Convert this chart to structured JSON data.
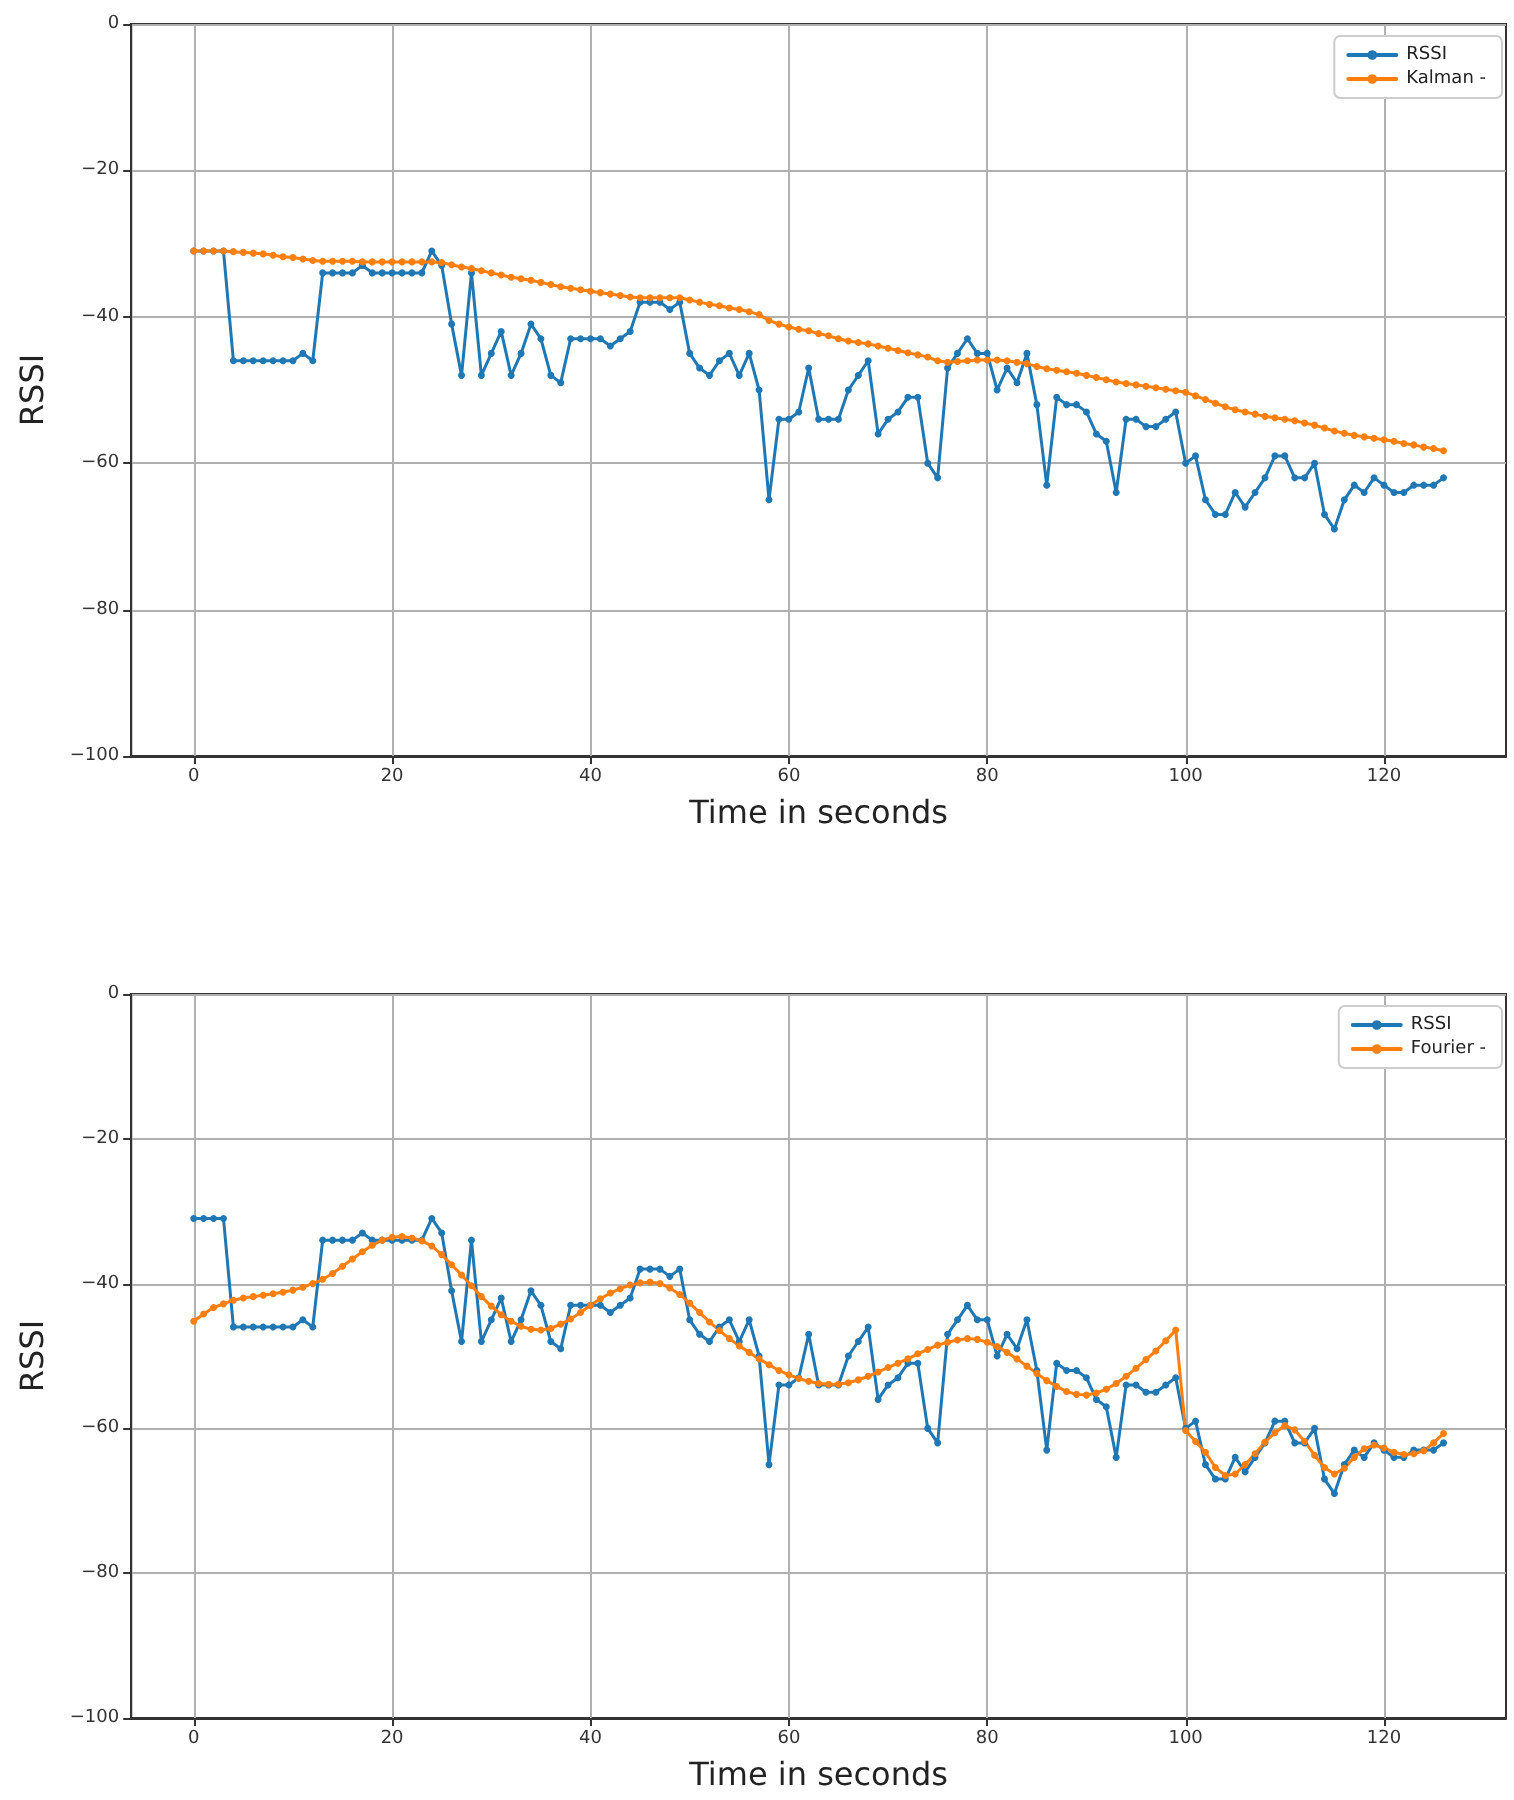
{
  "chart_data": [
    {
      "type": "line",
      "xlabel": "Time in seconds",
      "ylabel": "RSSI",
      "xlim": [
        -6.3,
        132.3
      ],
      "ylim": [
        -100,
        0
      ],
      "xticks": [
        0,
        20,
        40,
        60,
        80,
        100,
        120
      ],
      "yticks": [
        {
          "value": -100,
          "label": "−100"
        },
        {
          "value": -80,
          "label": "−80"
        },
        {
          "value": -60,
          "label": "−60"
        },
        {
          "value": -40,
          "label": "−40"
        },
        {
          "value": -20,
          "label": "−20"
        },
        0
      ],
      "grid": true,
      "legend": "top right",
      "marker": "circle",
      "line_style": "solid",
      "x": [
        0,
        1,
        2,
        3,
        4,
        5,
        6,
        7,
        8,
        9,
        10,
        11,
        12,
        13,
        14,
        15,
        16,
        17,
        18,
        19,
        20,
        21,
        22,
        23,
        24,
        25,
        26,
        27,
        28,
        29,
        30,
        31,
        32,
        33,
        34,
        35,
        36,
        37,
        38,
        39,
        40,
        41,
        42,
        43,
        44,
        45,
        46,
        47,
        48,
        49,
        50,
        51,
        52,
        53,
        54,
        55,
        56,
        57,
        58,
        59,
        60,
        61,
        62,
        63,
        64,
        65,
        66,
        67,
        68,
        69,
        70,
        71,
        72,
        73,
        74,
        75,
        76,
        77,
        78,
        79,
        80,
        81,
        82,
        83,
        84,
        85,
        86,
        87,
        88,
        89,
        90,
        91,
        92,
        93,
        94,
        95,
        96,
        97,
        98,
        99,
        100,
        101,
        102,
        103,
        104,
        105,
        106,
        107,
        108,
        109,
        110,
        111,
        112,
        113,
        114,
        115,
        116,
        117,
        118,
        119,
        120,
        121,
        122,
        123,
        124,
        125,
        126
      ],
      "series": [
        {
          "name": "RSSI",
          "color": "#1f77b4",
          "values": [
            -31,
            -31,
            -31,
            -31,
            -46,
            -46,
            -46,
            -46,
            -46,
            -46,
            -46,
            -45,
            -46,
            -34,
            -34,
            -34,
            -34,
            -33,
            -34,
            -34,
            -34,
            -34,
            -34,
            -34,
            -31,
            -33,
            -41,
            -48,
            -34,
            -48,
            -45,
            -42,
            -48,
            -45,
            -41,
            -43,
            -48,
            -49,
            -43,
            -43,
            -43,
            -43,
            -44,
            -43,
            -42,
            -38,
            -38,
            -38,
            -39,
            -38,
            -45,
            -47,
            -48,
            -46,
            -45,
            -48,
            -45,
            -50,
            -65,
            -54,
            -54,
            -53,
            -47,
            -54,
            -54,
            -54,
            -50,
            -48,
            -46,
            -56,
            -54,
            -53,
            -51,
            -51,
            -60,
            -62,
            -47,
            -45,
            -43,
            -45,
            -45,
            -50,
            -47,
            -49,
            -45,
            -52,
            -63,
            -51,
            -52,
            -52,
            -53,
            -56,
            -57,
            -64,
            -54,
            -54,
            -55,
            -55,
            -54,
            -53,
            -60,
            -59,
            -65,
            -67,
            -67,
            -64,
            -66,
            -64,
            -62,
            -59,
            -59,
            -62,
            -62,
            -60,
            -67,
            -69,
            -65,
            -63,
            -64,
            -62,
            -63,
            -64,
            -64,
            -63,
            -63,
            -63,
            -62
          ]
        },
        {
          "name": "Kalman -",
          "color": "#ff7f0e",
          "values": [
            -31.0,
            -31.0,
            -31.0,
            -31.0,
            -31.1,
            -31.2,
            -31.3,
            -31.4,
            -31.6,
            -31.8,
            -31.9,
            -32.1,
            -32.3,
            -32.4,
            -32.4,
            -32.4,
            -32.4,
            -32.5,
            -32.5,
            -32.5,
            -32.5,
            -32.5,
            -32.5,
            -32.5,
            -32.5,
            -32.6,
            -32.9,
            -33.2,
            -33.4,
            -33.7,
            -34.0,
            -34.3,
            -34.6,
            -34.8,
            -35.0,
            -35.3,
            -35.6,
            -35.9,
            -36.1,
            -36.3,
            -36.5,
            -36.7,
            -36.9,
            -37.1,
            -37.3,
            -37.4,
            -37.4,
            -37.4,
            -37.4,
            -37.4,
            -37.7,
            -38.0,
            -38.3,
            -38.5,
            -38.8,
            -39.0,
            -39.3,
            -39.7,
            -40.5,
            -41.0,
            -41.4,
            -41.7,
            -41.9,
            -42.3,
            -42.6,
            -43.0,
            -43.3,
            -43.5,
            -43.7,
            -44.0,
            -44.3,
            -44.6,
            -44.9,
            -45.2,
            -45.5,
            -46.0,
            -46.2,
            -46.1,
            -46.0,
            -45.9,
            -45.9,
            -45.9,
            -46.0,
            -46.2,
            -46.4,
            -46.8,
            -47.1,
            -47.3,
            -47.5,
            -47.7,
            -48.0,
            -48.3,
            -48.6,
            -48.9,
            -49.1,
            -49.3,
            -49.5,
            -49.7,
            -49.9,
            -50.1,
            -50.3,
            -50.8,
            -51.3,
            -51.8,
            -52.3,
            -52.7,
            -53.0,
            -53.3,
            -53.6,
            -53.8,
            -54.0,
            -54.2,
            -54.5,
            -54.8,
            -55.2,
            -55.6,
            -55.9,
            -56.2,
            -56.4,
            -56.6,
            -56.8,
            -57.0,
            -57.3,
            -57.5,
            -57.8,
            -58.0,
            -58.3
          ]
        }
      ]
    },
    {
      "type": "line",
      "xlabel": "Time in seconds",
      "ylabel": "RSSI",
      "xlim": [
        -6.3,
        132.3
      ],
      "ylim": [
        -100,
        0
      ],
      "xticks": [
        0,
        20,
        40,
        60,
        80,
        100,
        120
      ],
      "yticks": [
        {
          "value": -100,
          "label": "−100"
        },
        {
          "value": -80,
          "label": "−80"
        },
        {
          "value": -60,
          "label": "−60"
        },
        {
          "value": -40,
          "label": "−40"
        },
        {
          "value": -20,
          "label": "−20"
        },
        0
      ],
      "grid": true,
      "legend": "top right",
      "marker": "circle",
      "line_style": "solid",
      "x": [
        0,
        1,
        2,
        3,
        4,
        5,
        6,
        7,
        8,
        9,
        10,
        11,
        12,
        13,
        14,
        15,
        16,
        17,
        18,
        19,
        20,
        21,
        22,
        23,
        24,
        25,
        26,
        27,
        28,
        29,
        30,
        31,
        32,
        33,
        34,
        35,
        36,
        37,
        38,
        39,
        40,
        41,
        42,
        43,
        44,
        45,
        46,
        47,
        48,
        49,
        50,
        51,
        52,
        53,
        54,
        55,
        56,
        57,
        58,
        59,
        60,
        61,
        62,
        63,
        64,
        65,
        66,
        67,
        68,
        69,
        70,
        71,
        72,
        73,
        74,
        75,
        76,
        77,
        78,
        79,
        80,
        81,
        82,
        83,
        84,
        85,
        86,
        87,
        88,
        89,
        90,
        91,
        92,
        93,
        94,
        95,
        96,
        97,
        98,
        99,
        100,
        101,
        102,
        103,
        104,
        105,
        106,
        107,
        108,
        109,
        110,
        111,
        112,
        113,
        114,
        115,
        116,
        117,
        118,
        119,
        120,
        121,
        122,
        123,
        124,
        125,
        126
      ],
      "series": [
        {
          "name": "RSSI",
          "color": "#1f77b4",
          "values": [
            -31,
            -31,
            -31,
            -31,
            -46,
            -46,
            -46,
            -46,
            -46,
            -46,
            -46,
            -45,
            -46,
            -34,
            -34,
            -34,
            -34,
            -33,
            -34,
            -34,
            -34,
            -34,
            -34,
            -34,
            -31,
            -33,
            -41,
            -48,
            -34,
            -48,
            -45,
            -42,
            -48,
            -45,
            -41,
            -43,
            -48,
            -49,
            -43,
            -43,
            -43,
            -43,
            -44,
            -43,
            -42,
            -38,
            -38,
            -38,
            -39,
            -38,
            -45,
            -47,
            -48,
            -46,
            -45,
            -48,
            -45,
            -50,
            -65,
            -54,
            -54,
            -53,
            -47,
            -54,
            -54,
            -54,
            -50,
            -48,
            -46,
            -56,
            -54,
            -53,
            -51,
            -51,
            -60,
            -62,
            -47,
            -45,
            -43,
            -45,
            -45,
            -50,
            -47,
            -49,
            -45,
            -52,
            -63,
            -51,
            -52,
            -52,
            -53,
            -56,
            -57,
            -64,
            -54,
            -54,
            -55,
            -55,
            -54,
            -53,
            -60,
            -59,
            -65,
            -67,
            -67,
            -64,
            -66,
            -64,
            -62,
            -59,
            -59,
            -62,
            -62,
            -60,
            -67,
            -69,
            -65,
            -63,
            -64,
            -62,
            -63,
            -64,
            -64,
            -63,
            -63,
            -63,
            -62
          ]
        },
        {
          "name": "Fourier -",
          "color": "#ff7f0e",
          "values": [
            -45.2,
            -44.2,
            -43.3,
            -42.8,
            -42.3,
            -42.0,
            -41.8,
            -41.6,
            -41.4,
            -41.2,
            -40.9,
            -40.5,
            -40.0,
            -39.4,
            -38.6,
            -37.6,
            -36.6,
            -35.6,
            -34.7,
            -34.0,
            -33.6,
            -33.5,
            -33.7,
            -34.1,
            -34.8,
            -36.0,
            -37.4,
            -38.8,
            -40.3,
            -41.8,
            -43.1,
            -44.3,
            -45.2,
            -45.9,
            -46.3,
            -46.4,
            -46.2,
            -45.6,
            -44.9,
            -44.0,
            -43.0,
            -42.1,
            -41.3,
            -40.7,
            -40.2,
            -39.9,
            -39.8,
            -40.0,
            -40.6,
            -41.5,
            -42.7,
            -44.0,
            -45.3,
            -46.5,
            -47.6,
            -48.6,
            -49.5,
            -50.4,
            -51.2,
            -52.0,
            -52.6,
            -53.1,
            -53.5,
            -53.8,
            -53.9,
            -53.9,
            -53.7,
            -53.3,
            -52.8,
            -52.2,
            -51.6,
            -51.0,
            -50.4,
            -49.7,
            -49.1,
            -48.5,
            -48.1,
            -47.8,
            -47.6,
            -47.7,
            -48.1,
            -48.7,
            -49.5,
            -50.4,
            -51.4,
            -52.4,
            -53.4,
            -54.2,
            -54.9,
            -55.3,
            -55.4,
            -55.1,
            -54.6,
            -53.8,
            -52.8,
            -51.7,
            -50.5,
            -49.3,
            -47.9,
            -46.4,
            -60.3,
            -61.8,
            -63.3,
            -65.4,
            -66.5,
            -66.3,
            -65.0,
            -63.5,
            -61.9,
            -60.6,
            -59.6,
            -60.2,
            -61.8,
            -63.7,
            -65.4,
            -66.3,
            -65.5,
            -64.0,
            -62.8,
            -62.3,
            -62.7,
            -63.3,
            -63.6,
            -63.5,
            -63.1,
            -62.0,
            -60.7
          ]
        }
      ]
    }
  ]
}
